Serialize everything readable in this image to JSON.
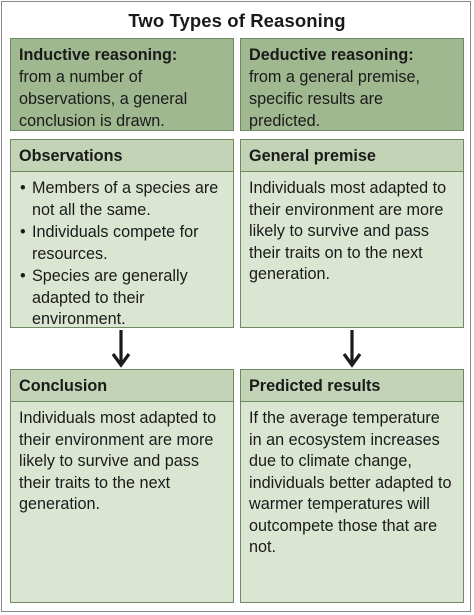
{
  "title": "Two Types of Reasoning",
  "inductive": {
    "heading": "Inductive reasoning:",
    "definition": "from a number of observations, a general conclusion is drawn.",
    "observations": {
      "heading": "Observations",
      "items": [
        "Members of a species are not all the same.",
        "Individuals compete for resources.",
        "Species are generally adapted to their environment."
      ]
    },
    "conclusion": {
      "heading": "Conclusion",
      "text": "Individuals most adapted to their environment are more likely to survive and pass their traits to the next generation."
    }
  },
  "deductive": {
    "heading": "Deductive reasoning:",
    "definition": "from a general premise, specific results are predicted.",
    "premise": {
      "heading": "General premise",
      "text": "Individuals most adapted to their environment are more likely to survive and pass their traits on to the next generation."
    },
    "results": {
      "heading": "Predicted results",
      "text": "If the average temperature in an ecosystem increases due to climate change, individuals better adapted to warmer temperatures will outcompete those that are not."
    }
  },
  "colors": {
    "definition_fill": "#9fb88f",
    "header_fill": "#c2d3b6",
    "body_fill": "#dbe6d2",
    "border": "#6f8a63"
  }
}
